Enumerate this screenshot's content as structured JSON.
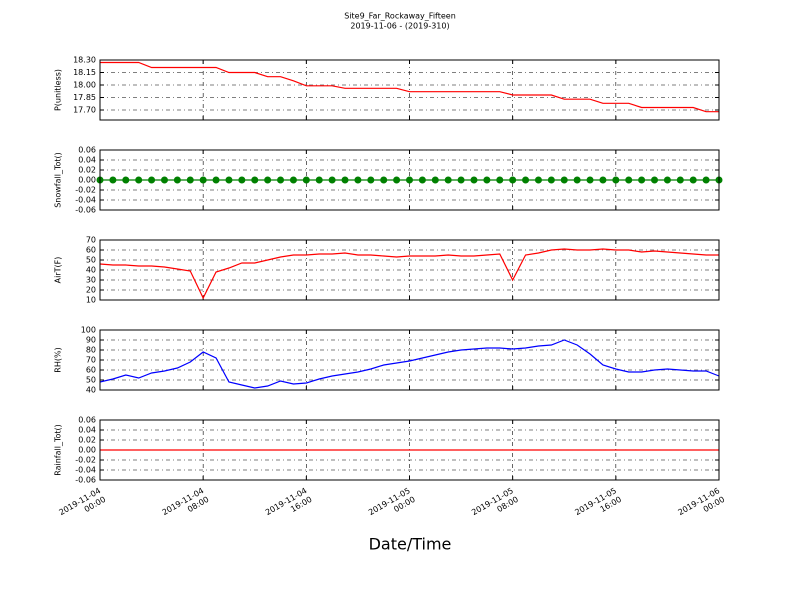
{
  "title": "Site9_Far_Rockaway_Fifteen",
  "subtitle": "2019-11-06 - (2019-310)",
  "xlabel": "Date/Time",
  "xlim": [
    "2019-11-04 00:00",
    "2019-11-06 00:00"
  ],
  "xticks": [
    {
      "value": "2019-11-04 00:00",
      "label": [
        "2019-11-04",
        "00:00"
      ]
    },
    {
      "value": "2019-11-04 08:00",
      "label": [
        "2019-11-04",
        "08:00"
      ]
    },
    {
      "value": "2019-11-04 16:00",
      "label": [
        "2019-11-04",
        "16:00"
      ]
    },
    {
      "value": "2019-11-05 00:00",
      "label": [
        "2019-11-05",
        "00:00"
      ]
    },
    {
      "value": "2019-11-05 08:00",
      "label": [
        "2019-11-05",
        "08:00"
      ]
    },
    {
      "value": "2019-11-05 16:00",
      "label": [
        "2019-11-05",
        "16:00"
      ]
    },
    {
      "value": "2019-11-06 00:00",
      "label": [
        "2019-11-06",
        "00:00"
      ]
    }
  ],
  "x": [
    "2019-11-04 00:00",
    "2019-11-04 01:00",
    "2019-11-04 02:00",
    "2019-11-04 03:00",
    "2019-11-04 04:00",
    "2019-11-04 05:00",
    "2019-11-04 06:00",
    "2019-11-04 07:00",
    "2019-11-04 08:00",
    "2019-11-04 09:00",
    "2019-11-04 10:00",
    "2019-11-04 11:00",
    "2019-11-04 12:00",
    "2019-11-04 13:00",
    "2019-11-04 14:00",
    "2019-11-04 15:00",
    "2019-11-04 16:00",
    "2019-11-04 17:00",
    "2019-11-04 18:00",
    "2019-11-04 19:00",
    "2019-11-04 20:00",
    "2019-11-04 21:00",
    "2019-11-04 22:00",
    "2019-11-04 23:00",
    "2019-11-05 00:00",
    "2019-11-05 01:00",
    "2019-11-05 02:00",
    "2019-11-05 03:00",
    "2019-11-05 04:00",
    "2019-11-05 05:00",
    "2019-11-05 06:00",
    "2019-11-05 07:00",
    "2019-11-05 08:00",
    "2019-11-05 09:00",
    "2019-11-05 10:00",
    "2019-11-05 11:00",
    "2019-11-05 12:00",
    "2019-11-05 13:00",
    "2019-11-05 14:00",
    "2019-11-05 15:00",
    "2019-11-05 16:00",
    "2019-11-05 17:00",
    "2019-11-05 18:00",
    "2019-11-05 19:00",
    "2019-11-05 20:00",
    "2019-11-05 21:00",
    "2019-11-05 22:00",
    "2019-11-05 23:00",
    "2019-11-06 00:00"
  ],
  "chart_data": [
    {
      "type": "line",
      "ylabel": "P(unitless)",
      "ylim": [
        17.58,
        18.3
      ],
      "grid": true,
      "yticks": [
        {
          "value": 17.7,
          "label": "17.70"
        },
        {
          "value": 17.85,
          "label": "17.85"
        },
        {
          "value": 18.0,
          "label": "18.00"
        },
        {
          "value": 18.15,
          "label": "18.15"
        },
        {
          "value": 18.3,
          "label": "18.30"
        }
      ],
      "series": [
        {
          "color": "#ff0000",
          "values": [
            18.27,
            18.27,
            18.27,
            18.27,
            18.21,
            18.21,
            18.21,
            18.21,
            18.21,
            18.21,
            18.15,
            18.15,
            18.15,
            18.1,
            18.1,
            18.05,
            17.99,
            17.99,
            17.99,
            17.96,
            17.96,
            17.96,
            17.96,
            17.96,
            17.92,
            17.92,
            17.92,
            17.92,
            17.92,
            17.92,
            17.92,
            17.92,
            17.88,
            17.88,
            17.88,
            17.88,
            17.83,
            17.83,
            17.83,
            17.78,
            17.78,
            17.78,
            17.73,
            17.73,
            17.73,
            17.73,
            17.73,
            17.68,
            17.68
          ]
        }
      ]
    },
    {
      "type": "line",
      "ylabel": "Snowfall_Tot()",
      "ylim": [
        -0.06,
        0.06
      ],
      "grid": true,
      "markers": true,
      "yticks": [
        -0.06,
        -0.04,
        -0.02,
        {
          "value": 0,
          "label": "0.00"
        },
        0.02,
        0.04,
        0.06
      ],
      "series": [
        {
          "color": "#008000",
          "values": [
            0,
            0,
            0,
            0,
            0,
            0,
            0,
            0,
            0,
            0,
            0,
            0,
            0,
            0,
            0,
            0,
            0,
            0,
            0,
            0,
            0,
            0,
            0,
            0,
            0,
            0,
            0,
            0,
            0,
            0,
            0,
            0,
            0,
            0,
            0,
            0,
            0,
            0,
            0,
            0,
            0,
            0,
            0,
            0,
            0,
            0,
            0,
            0,
            0
          ]
        }
      ]
    },
    {
      "type": "line",
      "ylabel": "AirT(F)",
      "ylim": [
        10,
        70
      ],
      "grid": true,
      "yticks": [
        10,
        20,
        30,
        40,
        50,
        60,
        70
      ],
      "series": [
        {
          "color": "#ff0000",
          "values": [
            46,
            45,
            45,
            44,
            44,
            43,
            41,
            39,
            12,
            38,
            42,
            47,
            47,
            50,
            53,
            55,
            55,
            56,
            56,
            57,
            55,
            55,
            54,
            53,
            54,
            54,
            54,
            55,
            54,
            54,
            55,
            56,
            30,
            55,
            57,
            60,
            61,
            60,
            60,
            61,
            60,
            60,
            58,
            59,
            58,
            57,
            56,
            55,
            55
          ]
        }
      ]
    },
    {
      "type": "line",
      "ylabel": "RH(%)",
      "ylim": [
        40,
        100
      ],
      "grid": true,
      "yticks": [
        40,
        50,
        60,
        70,
        80,
        90,
        100
      ],
      "series": [
        {
          "color": "#0000ff",
          "values": [
            48,
            51,
            55,
            52,
            57,
            59,
            62,
            68,
            78,
            72,
            48,
            45,
            42,
            44,
            49,
            46,
            47,
            51,
            54,
            56,
            58,
            61,
            65,
            67,
            69,
            72,
            75,
            78,
            80,
            81,
            82,
            82,
            81,
            82,
            84,
            85,
            90,
            85,
            76,
            65,
            61,
            58,
            58,
            60,
            61,
            60,
            59,
            59,
            54
          ]
        }
      ]
    },
    {
      "type": "line",
      "ylabel": "Rainfall_Tot()",
      "ylim": [
        -0.06,
        0.06
      ],
      "grid": true,
      "yticks": [
        -0.06,
        -0.04,
        -0.02,
        {
          "value": 0,
          "label": "0.00"
        },
        0.02,
        0.04,
        0.06
      ],
      "series": [
        {
          "color": "#ff0000",
          "values": [
            0,
            0,
            0,
            0,
            0,
            0,
            0,
            0,
            0,
            0,
            0,
            0,
            0,
            0,
            0,
            0,
            0,
            0,
            0,
            0,
            0,
            0,
            0,
            0,
            0,
            0,
            0,
            0,
            0,
            0,
            0,
            0,
            0,
            0,
            0,
            0,
            0,
            0,
            0,
            0,
            0,
            0,
            0,
            0,
            0,
            0,
            0,
            0,
            0
          ]
        }
      ]
    }
  ]
}
